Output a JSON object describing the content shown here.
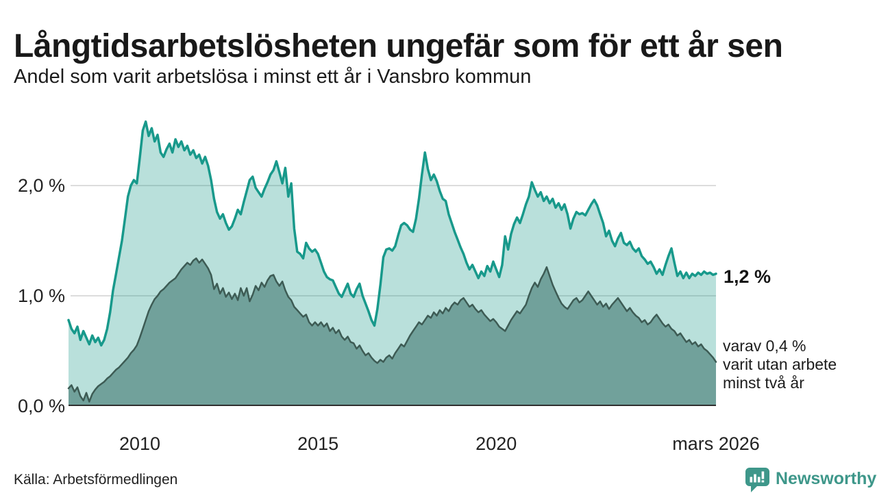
{
  "header": {
    "title": "Långtidsarbetslösheten ungefär som för ett år sen",
    "subtitle": "Andel som varit arbetslösa i minst ett år i Vansbro kommun"
  },
  "footer": {
    "source": "Källa: Arbetsförmedlingen",
    "brand": "Newsworthy"
  },
  "colors": {
    "accent_teal": "#18998b",
    "light_fill": "rgba(24,153,137,0.30)",
    "dark_line": "#3d5b54",
    "dark_fill": "#71a19b",
    "gridline": "#dcdcdc",
    "axis_line": "#2e2e2e",
    "logo_teal": "#3e978a"
  },
  "chart_data": {
    "type": "area",
    "title": "Långtidsarbetslösheten ungefär som för ett år sen",
    "subtitle": "Andel som varit arbetslösa i minst ett år i Vansbro kommun",
    "unit": "%",
    "x_start": "2008-01",
    "x_end": "2026-03",
    "x_interval": "monthly",
    "xlim": [
      2008.0,
      2026.1667
    ],
    "ylim": [
      0,
      2.66
    ],
    "grid": "horizontal",
    "legend_position": "right-annotations",
    "x_ticks": [
      {
        "t": 2010.0,
        "label": "2010"
      },
      {
        "t": 2015.0,
        "label": "2015"
      },
      {
        "t": 2020.0,
        "label": "2020"
      },
      {
        "t": 2026.1667,
        "label": "mars 2026"
      }
    ],
    "y_ticks": [
      {
        "v": 0,
        "label": "0,0 %"
      },
      {
        "v": 1,
        "label": "1,0 %"
      },
      {
        "v": 2,
        "label": "2,0 %"
      }
    ],
    "series": [
      {
        "name": "Andel som varit arbetslösa i minst ett år",
        "color": "#18998b",
        "fill": "rgba(24,153,137,0.30)",
        "line_width": 3.5,
        "end_value": "1,2 %",
        "end_label": "1,2 %",
        "values": [
          0.78,
          0.7,
          0.66,
          0.72,
          0.6,
          0.68,
          0.62,
          0.56,
          0.64,
          0.58,
          0.62,
          0.55,
          0.6,
          0.7,
          0.85,
          1.05,
          1.2,
          1.35,
          1.5,
          1.7,
          1.9,
          2.0,
          2.05,
          2.02,
          2.25,
          2.5,
          2.58,
          2.45,
          2.52,
          2.4,
          2.46,
          2.3,
          2.26,
          2.33,
          2.38,
          2.3,
          2.42,
          2.35,
          2.4,
          2.32,
          2.36,
          2.28,
          2.32,
          2.25,
          2.28,
          2.2,
          2.26,
          2.18,
          2.05,
          1.88,
          1.76,
          1.7,
          1.74,
          1.66,
          1.6,
          1.63,
          1.7,
          1.78,
          1.74,
          1.85,
          1.95,
          2.05,
          2.08,
          1.98,
          1.94,
          1.9,
          1.97,
          2.03,
          2.1,
          2.14,
          2.22,
          2.12,
          2.02,
          2.16,
          1.9,
          2.02,
          1.61,
          1.4,
          1.38,
          1.34,
          1.48,
          1.43,
          1.4,
          1.42,
          1.38,
          1.3,
          1.22,
          1.17,
          1.15,
          1.14,
          1.08,
          1.02,
          0.99,
          1.05,
          1.11,
          1.02,
          0.99,
          1.06,
          1.11,
          1.0,
          0.93,
          0.86,
          0.78,
          0.73,
          0.88,
          1.1,
          1.35,
          1.42,
          1.43,
          1.41,
          1.45,
          1.55,
          1.64,
          1.66,
          1.64,
          1.6,
          1.58,
          1.7,
          1.88,
          2.1,
          2.3,
          2.15,
          2.05,
          2.1,
          2.04,
          1.95,
          1.88,
          1.86,
          1.74,
          1.66,
          1.58,
          1.51,
          1.44,
          1.38,
          1.3,
          1.24,
          1.28,
          1.22,
          1.16,
          1.22,
          1.18,
          1.27,
          1.22,
          1.31,
          1.24,
          1.17,
          1.28,
          1.54,
          1.42,
          1.56,
          1.65,
          1.71,
          1.66,
          1.74,
          1.83,
          1.9,
          2.03,
          1.96,
          1.9,
          1.94,
          1.86,
          1.9,
          1.84,
          1.88,
          1.8,
          1.84,
          1.78,
          1.83,
          1.74,
          1.61,
          1.7,
          1.76,
          1.74,
          1.75,
          1.73,
          1.78,
          1.83,
          1.87,
          1.82,
          1.74,
          1.66,
          1.54,
          1.59,
          1.5,
          1.45,
          1.52,
          1.57,
          1.48,
          1.46,
          1.49,
          1.43,
          1.4,
          1.43,
          1.36,
          1.33,
          1.29,
          1.31,
          1.26,
          1.2,
          1.24,
          1.19,
          1.28,
          1.36,
          1.43,
          1.3,
          1.18,
          1.22,
          1.16,
          1.21,
          1.16,
          1.2,
          1.18,
          1.21,
          1.19,
          1.22,
          1.2,
          1.21,
          1.19,
          1.2
        ]
      },
      {
        "name": "varav varit utan arbete minst två år",
        "color": "#3d5b54",
        "fill": "#71a19b",
        "line_width": 2.5,
        "end_value": "0,4 %",
        "end_label_lines": [
          "varav 0,4 %",
          "varit utan arbete",
          "minst två år"
        ],
        "values": [
          0.16,
          0.19,
          0.13,
          0.17,
          0.09,
          0.05,
          0.12,
          0.04,
          0.11,
          0.15,
          0.18,
          0.2,
          0.22,
          0.25,
          0.27,
          0.3,
          0.33,
          0.35,
          0.38,
          0.41,
          0.44,
          0.48,
          0.51,
          0.55,
          0.62,
          0.7,
          0.78,
          0.86,
          0.92,
          0.97,
          1.0,
          1.04,
          1.06,
          1.09,
          1.12,
          1.14,
          1.16,
          1.2,
          1.24,
          1.27,
          1.3,
          1.28,
          1.32,
          1.34,
          1.3,
          1.33,
          1.29,
          1.25,
          1.19,
          1.06,
          1.11,
          1.02,
          1.07,
          0.99,
          1.03,
          0.97,
          1.02,
          0.96,
          1.07,
          1.0,
          1.07,
          0.95,
          1.01,
          1.09,
          1.05,
          1.12,
          1.08,
          1.14,
          1.18,
          1.19,
          1.13,
          1.09,
          1.13,
          1.05,
          0.99,
          0.96,
          0.9,
          0.87,
          0.84,
          0.81,
          0.83,
          0.76,
          0.73,
          0.76,
          0.73,
          0.76,
          0.72,
          0.75,
          0.68,
          0.71,
          0.66,
          0.69,
          0.63,
          0.6,
          0.63,
          0.58,
          0.57,
          0.52,
          0.55,
          0.5,
          0.46,
          0.48,
          0.44,
          0.41,
          0.39,
          0.42,
          0.4,
          0.44,
          0.46,
          0.43,
          0.48,
          0.52,
          0.56,
          0.54,
          0.59,
          0.64,
          0.68,
          0.72,
          0.76,
          0.74,
          0.78,
          0.82,
          0.8,
          0.85,
          0.82,
          0.87,
          0.84,
          0.89,
          0.86,
          0.91,
          0.94,
          0.92,
          0.96,
          0.98,
          0.94,
          0.9,
          0.92,
          0.88,
          0.85,
          0.87,
          0.83,
          0.8,
          0.77,
          0.79,
          0.76,
          0.72,
          0.7,
          0.68,
          0.73,
          0.78,
          0.82,
          0.86,
          0.84,
          0.88,
          0.92,
          1.0,
          1.07,
          1.12,
          1.08,
          1.15,
          1.2,
          1.26,
          1.18,
          1.1,
          1.04,
          0.98,
          0.93,
          0.9,
          0.88,
          0.92,
          0.96,
          0.98,
          0.94,
          0.96,
          1.0,
          1.04,
          1.0,
          0.96,
          0.92,
          0.95,
          0.9,
          0.93,
          0.88,
          0.92,
          0.95,
          0.98,
          0.94,
          0.9,
          0.86,
          0.89,
          0.85,
          0.82,
          0.8,
          0.76,
          0.78,
          0.74,
          0.76,
          0.8,
          0.83,
          0.79,
          0.75,
          0.72,
          0.74,
          0.7,
          0.68,
          0.64,
          0.66,
          0.62,
          0.58,
          0.6,
          0.56,
          0.58,
          0.54,
          0.56,
          0.52,
          0.5,
          0.47,
          0.44,
          0.4
        ]
      }
    ]
  }
}
